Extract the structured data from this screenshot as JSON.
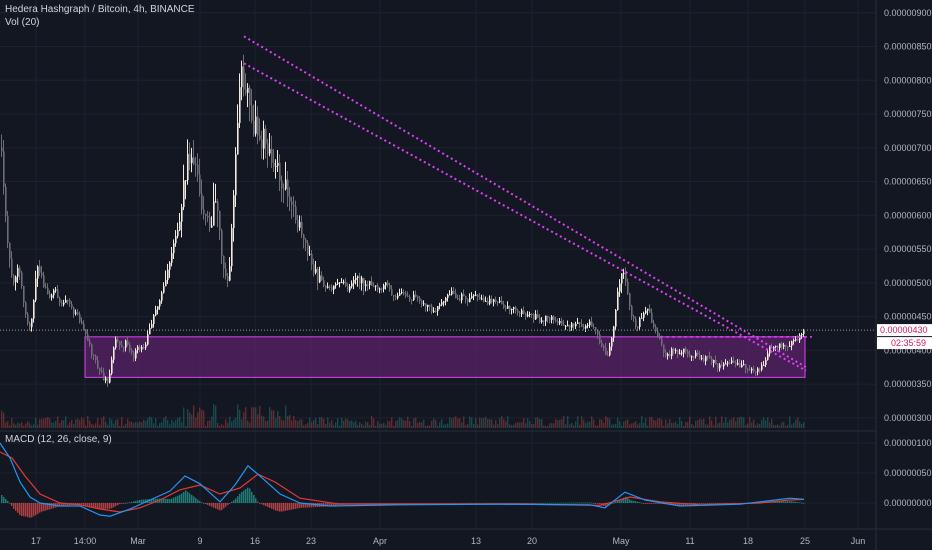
{
  "chart_data": [
    {
      "type": "candlestick",
      "title": "Hedera Hashgraph / Bitcoin, 4h, BINANCE",
      "indicator_label": "Vol (20)",
      "y_ticks": [
        "0.00000900",
        "0.00000850",
        "0.00000800",
        "0.00000750",
        "0.00000700",
        "0.00000650",
        "0.00000600",
        "0.00000550",
        "0.00000500",
        "0.00000450",
        "0.00000400",
        "0.00000350",
        "0.00000300"
      ],
      "ylim": [
        2.85e-06,
        9.1e-06
      ],
      "x_ticks": [
        "17",
        "14:00",
        "Mar",
        "9",
        "16",
        "23",
        "Apr",
        "13",
        "20",
        "May",
        "11",
        "18",
        "25",
        "Jun"
      ],
      "last_price": "0.00000430",
      "last_price_value": 4.3e-06,
      "countdown": "02:35:59",
      "series_close": [
        {
          "x": 0,
          "y": 7.0
        },
        {
          "x": 6,
          "y": 5.8
        },
        {
          "x": 12,
          "y": 4.9
        },
        {
          "x": 18,
          "y": 5.3
        },
        {
          "x": 24,
          "y": 4.6
        },
        {
          "x": 30,
          "y": 4.3
        },
        {
          "x": 36,
          "y": 5.2
        },
        {
          "x": 42,
          "y": 5.0
        },
        {
          "x": 48,
          "y": 4.8
        },
        {
          "x": 54,
          "y": 4.9
        },
        {
          "x": 60,
          "y": 4.7
        },
        {
          "x": 66,
          "y": 4.8
        },
        {
          "x": 72,
          "y": 4.6
        },
        {
          "x": 78,
          "y": 4.5
        },
        {
          "x": 84,
          "y": 4.3
        },
        {
          "x": 90,
          "y": 4.0
        },
        {
          "x": 96,
          "y": 3.8
        },
        {
          "x": 102,
          "y": 3.6
        },
        {
          "x": 108,
          "y": 3.5
        },
        {
          "x": 114,
          "y": 4.2
        },
        {
          "x": 120,
          "y": 4.0
        },
        {
          "x": 126,
          "y": 4.15
        },
        {
          "x": 132,
          "y": 3.9
        },
        {
          "x": 138,
          "y": 4.05
        },
        {
          "x": 144,
          "y": 4.0
        },
        {
          "x": 150,
          "y": 4.4
        },
        {
          "x": 156,
          "y": 4.6
        },
        {
          "x": 162,
          "y": 4.9
        },
        {
          "x": 168,
          "y": 5.2
        },
        {
          "x": 174,
          "y": 5.6
        },
        {
          "x": 180,
          "y": 6.0
        },
        {
          "x": 186,
          "y": 6.8
        },
        {
          "x": 192,
          "y": 7.0
        },
        {
          "x": 198,
          "y": 6.4
        },
        {
          "x": 204,
          "y": 6.0
        },
        {
          "x": 210,
          "y": 5.8
        },
        {
          "x": 216,
          "y": 6.4
        },
        {
          "x": 222,
          "y": 5.2
        },
        {
          "x": 228,
          "y": 5.0
        },
        {
          "x": 234,
          "y": 6.6
        },
        {
          "x": 240,
          "y": 8.2
        },
        {
          "x": 246,
          "y": 7.8
        },
        {
          "x": 252,
          "y": 7.4
        },
        {
          "x": 258,
          "y": 7.2
        },
        {
          "x": 264,
          "y": 7.1
        },
        {
          "x": 270,
          "y": 6.9
        },
        {
          "x": 276,
          "y": 6.7
        },
        {
          "x": 282,
          "y": 6.5
        },
        {
          "x": 288,
          "y": 6.3
        },
        {
          "x": 294,
          "y": 6.0
        },
        {
          "x": 300,
          "y": 5.8
        },
        {
          "x": 306,
          "y": 5.5
        },
        {
          "x": 312,
          "y": 5.2
        },
        {
          "x": 318,
          "y": 5.05
        },
        {
          "x": 324,
          "y": 4.95
        },
        {
          "x": 330,
          "y": 4.9
        },
        {
          "x": 336,
          "y": 4.95
        },
        {
          "x": 342,
          "y": 5.0
        },
        {
          "x": 348,
          "y": 4.9
        },
        {
          "x": 354,
          "y": 5.1
        },
        {
          "x": 360,
          "y": 5.0
        },
        {
          "x": 366,
          "y": 5.05
        },
        {
          "x": 372,
          "y": 4.95
        },
        {
          "x": 378,
          "y": 4.9
        },
        {
          "x": 384,
          "y": 5.0
        },
        {
          "x": 390,
          "y": 4.85
        },
        {
          "x": 396,
          "y": 4.8
        },
        {
          "x": 402,
          "y": 4.85
        },
        {
          "x": 408,
          "y": 4.75
        },
        {
          "x": 414,
          "y": 4.8
        },
        {
          "x": 420,
          "y": 4.7
        },
        {
          "x": 426,
          "y": 4.65
        },
        {
          "x": 432,
          "y": 4.6
        },
        {
          "x": 438,
          "y": 4.65
        },
        {
          "x": 444,
          "y": 4.7
        },
        {
          "x": 450,
          "y": 4.9
        },
        {
          "x": 456,
          "y": 4.75
        },
        {
          "x": 462,
          "y": 4.8
        },
        {
          "x": 468,
          "y": 4.75
        },
        {
          "x": 474,
          "y": 4.8
        },
        {
          "x": 480,
          "y": 4.75
        },
        {
          "x": 486,
          "y": 4.7
        },
        {
          "x": 492,
          "y": 4.75
        },
        {
          "x": 498,
          "y": 4.7
        },
        {
          "x": 504,
          "y": 4.65
        },
        {
          "x": 510,
          "y": 4.6
        },
        {
          "x": 516,
          "y": 4.6
        },
        {
          "x": 522,
          "y": 4.55
        },
        {
          "x": 528,
          "y": 4.5
        },
        {
          "x": 534,
          "y": 4.5
        },
        {
          "x": 540,
          "y": 4.45
        },
        {
          "x": 546,
          "y": 4.5
        },
        {
          "x": 552,
          "y": 4.45
        },
        {
          "x": 558,
          "y": 4.4
        },
        {
          "x": 564,
          "y": 4.4
        },
        {
          "x": 570,
          "y": 4.35
        },
        {
          "x": 576,
          "y": 4.4
        },
        {
          "x": 582,
          "y": 4.35
        },
        {
          "x": 588,
          "y": 4.4
        },
        {
          "x": 594,
          "y": 4.3
        },
        {
          "x": 600,
          "y": 4.1
        },
        {
          "x": 606,
          "y": 3.9
        },
        {
          "x": 612,
          "y": 4.2
        },
        {
          "x": 618,
          "y": 5.0
        },
        {
          "x": 622,
          "y": 5.3
        },
        {
          "x": 626,
          "y": 5.0
        },
        {
          "x": 630,
          "y": 4.5
        },
        {
          "x": 636,
          "y": 4.35
        },
        {
          "x": 642,
          "y": 4.55
        },
        {
          "x": 648,
          "y": 4.6
        },
        {
          "x": 654,
          "y": 4.3
        },
        {
          "x": 660,
          "y": 4.1
        },
        {
          "x": 666,
          "y": 3.9
        },
        {
          "x": 672,
          "y": 4.0
        },
        {
          "x": 678,
          "y": 3.95
        },
        {
          "x": 684,
          "y": 4.0
        },
        {
          "x": 690,
          "y": 3.9
        },
        {
          "x": 696,
          "y": 3.95
        },
        {
          "x": 702,
          "y": 3.85
        },
        {
          "x": 708,
          "y": 3.9
        },
        {
          "x": 714,
          "y": 3.8
        },
        {
          "x": 720,
          "y": 3.75
        },
        {
          "x": 726,
          "y": 3.8
        },
        {
          "x": 732,
          "y": 3.85
        },
        {
          "x": 738,
          "y": 3.8
        },
        {
          "x": 744,
          "y": 3.75
        },
        {
          "x": 750,
          "y": 3.7
        },
        {
          "x": 756,
          "y": 3.72
        },
        {
          "x": 762,
          "y": 3.75
        },
        {
          "x": 768,
          "y": 4.0
        },
        {
          "x": 774,
          "y": 4.05
        },
        {
          "x": 780,
          "y": 4.1
        },
        {
          "x": 786,
          "y": 4.05
        },
        {
          "x": 792,
          "y": 4.1
        },
        {
          "x": 798,
          "y": 4.2
        },
        {
          "x": 804,
          "y": 4.3
        }
      ],
      "drawings": {
        "trendlines": [
          {
            "from": {
              "x": 244,
              "y": 8.65
            },
            "to": {
              "x": 806,
              "y": 3.75
            }
          },
          {
            "from": {
              "x": 244,
              "y": 8.25
            },
            "to": {
              "x": 806,
              "y": 3.7
            }
          }
        ],
        "support_zone": {
          "x_from": 85,
          "x_to": 805,
          "y_from": 3.6,
          "y_to": 4.2
        },
        "resistance_line": {
          "x_from": 660,
          "x_to": 812,
          "y": 4.2
        }
      }
    },
    {
      "type": "macd",
      "title": "MACD (12, 26, close, 9)",
      "y_ticks": [
        "0.00000100",
        "0.00000050",
        "0.00000000"
      ],
      "ylim": [
        -4e-07,
        1.15e-06
      ],
      "macd_line": [
        {
          "x": 0,
          "y": 1.0
        },
        {
          "x": 10,
          "y": 0.75
        },
        {
          "x": 20,
          "y": 0.35
        },
        {
          "x": 30,
          "y": 0.1
        },
        {
          "x": 40,
          "y": 0.0
        },
        {
          "x": 60,
          "y": -0.05
        },
        {
          "x": 80,
          "y": -0.05
        },
        {
          "x": 100,
          "y": -0.2
        },
        {
          "x": 110,
          "y": -0.22
        },
        {
          "x": 130,
          "y": -0.1
        },
        {
          "x": 150,
          "y": 0.05
        },
        {
          "x": 170,
          "y": 0.2
        },
        {
          "x": 185,
          "y": 0.45
        },
        {
          "x": 200,
          "y": 0.32
        },
        {
          "x": 220,
          "y": 0.02
        },
        {
          "x": 235,
          "y": 0.3
        },
        {
          "x": 248,
          "y": 0.62
        },
        {
          "x": 262,
          "y": 0.42
        },
        {
          "x": 280,
          "y": 0.15
        },
        {
          "x": 300,
          "y": 0.0
        },
        {
          "x": 330,
          "y": -0.05
        },
        {
          "x": 400,
          "y": -0.03
        },
        {
          "x": 500,
          "y": -0.02
        },
        {
          "x": 590,
          "y": -0.03
        },
        {
          "x": 605,
          "y": -0.08
        },
        {
          "x": 625,
          "y": 0.18
        },
        {
          "x": 645,
          "y": 0.05
        },
        {
          "x": 680,
          "y": -0.05
        },
        {
          "x": 740,
          "y": -0.02
        },
        {
          "x": 770,
          "y": 0.04
        },
        {
          "x": 790,
          "y": 0.08
        },
        {
          "x": 804,
          "y": 0.06
        }
      ],
      "signal_line": [
        {
          "x": 0,
          "y": 0.85
        },
        {
          "x": 12,
          "y": 0.75
        },
        {
          "x": 25,
          "y": 0.45
        },
        {
          "x": 40,
          "y": 0.15
        },
        {
          "x": 60,
          "y": 0.0
        },
        {
          "x": 80,
          "y": -0.03
        },
        {
          "x": 100,
          "y": -0.1
        },
        {
          "x": 120,
          "y": -0.15
        },
        {
          "x": 140,
          "y": -0.08
        },
        {
          "x": 160,
          "y": 0.05
        },
        {
          "x": 180,
          "y": 0.22
        },
        {
          "x": 200,
          "y": 0.3
        },
        {
          "x": 220,
          "y": 0.15
        },
        {
          "x": 240,
          "y": 0.25
        },
        {
          "x": 258,
          "y": 0.48
        },
        {
          "x": 275,
          "y": 0.35
        },
        {
          "x": 300,
          "y": 0.08
        },
        {
          "x": 340,
          "y": -0.02
        },
        {
          "x": 420,
          "y": -0.02
        },
        {
          "x": 520,
          "y": -0.02
        },
        {
          "x": 600,
          "y": -0.04
        },
        {
          "x": 630,
          "y": 0.1
        },
        {
          "x": 660,
          "y": 0.02
        },
        {
          "x": 700,
          "y": -0.03
        },
        {
          "x": 760,
          "y": 0.0
        },
        {
          "x": 790,
          "y": 0.05
        },
        {
          "x": 804,
          "y": 0.06
        }
      ]
    }
  ],
  "colors": {
    "background": "#131722",
    "grid": "#1e2230",
    "candle_up": "#f2e9e1",
    "candle_down": "#6d6e75",
    "accent": "#e040fb",
    "zone_fill": "#5b2168",
    "last_price_bg": "#ffffff",
    "last_price_text": "#d81b60",
    "macd_line": "#2196f3",
    "signal_line": "#e53935",
    "axis_text": "#b2b5be"
  }
}
